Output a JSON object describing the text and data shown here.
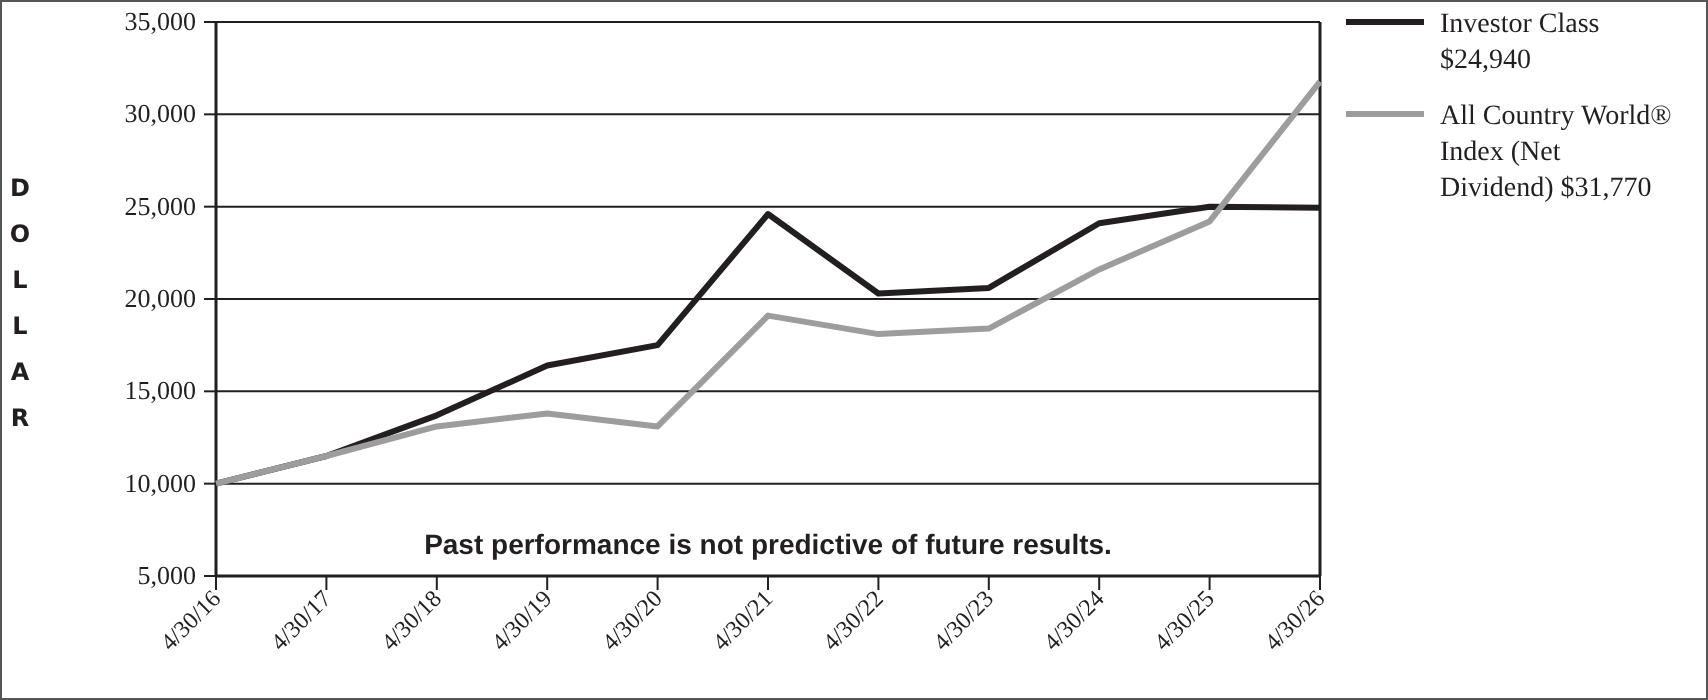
{
  "chart_data": {
    "type": "line",
    "ylabel": "DOLLAR",
    "categories": [
      "4/30/16",
      "4/30/17",
      "4/30/18",
      "4/30/19",
      "4/30/20",
      "4/30/21",
      "4/30/22",
      "4/30/23",
      "4/30/24",
      "4/30/25",
      "4/30/26"
    ],
    "series": [
      {
        "name": "Investor Class $24,940",
        "color": "#231f20",
        "values": [
          10000,
          11500,
          13700,
          16400,
          17500,
          24600,
          20300,
          20600,
          24100,
          25000,
          24940
        ]
      },
      {
        "name": "All Country World® Index (Net Dividend) $31,770",
        "color": "#9d9d9d",
        "values": [
          10000,
          11500,
          13100,
          13800,
          13100,
          19100,
          18100,
          18400,
          21600,
          24200,
          31770
        ]
      }
    ],
    "ylim": [
      5000,
      35000
    ],
    "yticks": [
      {
        "value": 5000,
        "label": "5,000"
      },
      {
        "value": 10000,
        "label": "10,000"
      },
      {
        "value": 15000,
        "label": "15,000"
      },
      {
        "value": 20000,
        "label": "20,000"
      },
      {
        "value": 25000,
        "label": "25,000"
      },
      {
        "value": 30000,
        "label": "30,000"
      },
      {
        "value": 35000,
        "label": "35,000"
      }
    ],
    "grid": "y",
    "legend": "right",
    "line_style": "solid",
    "marker": "none",
    "annotations": [
      "Past performance is not predictive of future results."
    ]
  }
}
